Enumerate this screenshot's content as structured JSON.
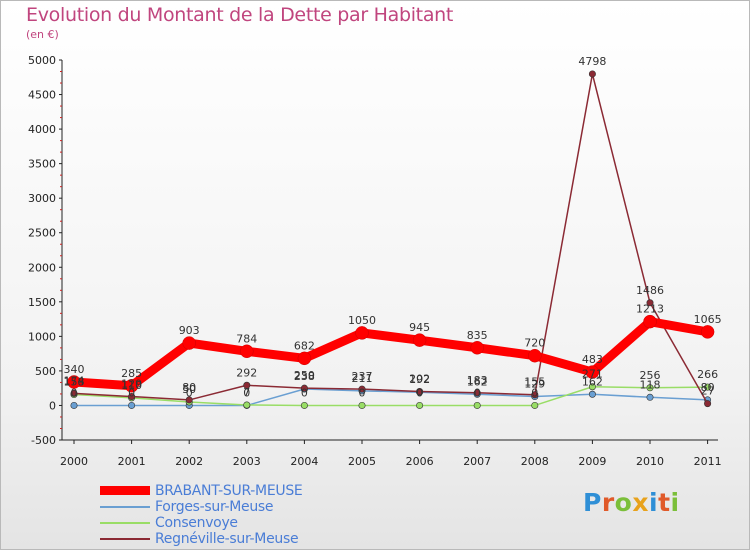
{
  "title": "Evolution du Montant de la Dette par Habitant",
  "subtitle": "(en €)",
  "brand": {
    "text": "Proxiti",
    "letters": [
      {
        "ch": "P",
        "color": "#2f8fd6"
      },
      {
        "ch": "r",
        "color": "#e05a2a"
      },
      {
        "ch": "o",
        "color": "#7bbf3a"
      },
      {
        "ch": "x",
        "color": "#e8a21c"
      },
      {
        "ch": "i",
        "color": "#2f8fd6"
      },
      {
        "ch": "t",
        "color": "#e05a2a"
      },
      {
        "ch": "i",
        "color": "#7bbf3a"
      }
    ]
  },
  "chart_data": {
    "type": "line",
    "title": "Evolution du Montant de la Dette par Habitant",
    "subtitle": "(en €)",
    "xlabel": "",
    "ylabel": "",
    "x": [
      "2000",
      "2001",
      "2002",
      "2003",
      "2004",
      "2005",
      "2006",
      "2007",
      "2008",
      "2009",
      "2010",
      "2011"
    ],
    "yticks": [
      -500,
      0,
      500,
      1000,
      1500,
      2000,
      2500,
      3000,
      3500,
      4000,
      4500,
      5000
    ],
    "ylim": [
      -500,
      5000
    ],
    "grid": false,
    "legend_position": "bottom-left",
    "series": [
      {
        "name": "BRABANT-SUR-MEUSE",
        "color": "#ff0000",
        "width": 9,
        "values": [
          340,
          285,
          903,
          784,
          682,
          1050,
          945,
          835,
          720,
          483,
          1213,
          1065
        ],
        "labels": [
          "340",
          "285",
          "903",
          "784",
          "682",
          "1050",
          "945",
          "835",
          "720",
          "483",
          "1213",
          "1065"
        ]
      },
      {
        "name": "Forges-sur-Meuse",
        "color": "#6a9fd2",
        "width": 1.5,
        "values": [
          0,
          0,
          0,
          0,
          238,
          211,
          192,
          162,
          129,
          162,
          118,
          80
        ],
        "labels": [
          "0",
          "0",
          "0",
          "0",
          "238",
          "211",
          "192",
          "162",
          "129",
          "162",
          "118",
          "80"
        ]
      },
      {
        "name": "Consenvoye",
        "color": "#99dd66",
        "width": 1.5,
        "values": [
          158,
          110,
          50,
          7,
          0,
          0,
          0,
          0,
          0,
          271,
          256,
          266
        ],
        "labels": [
          "158",
          "110",
          "50",
          "7",
          "0",
          "0",
          "0",
          "0",
          "0",
          "271",
          "256",
          "266"
        ]
      },
      {
        "name": "Regnéville-sur-Meuse",
        "color": "#8b2a34",
        "width": 1.5,
        "values": [
          174,
          129,
          80,
          292,
          250,
          237,
          202,
          183,
          155,
          4798,
          1486,
          27
        ],
        "labels": [
          "174",
          "129",
          "80",
          "292",
          "250",
          "237",
          "202",
          "183",
          "155",
          "4798",
          "1486",
          "27"
        ]
      }
    ]
  }
}
